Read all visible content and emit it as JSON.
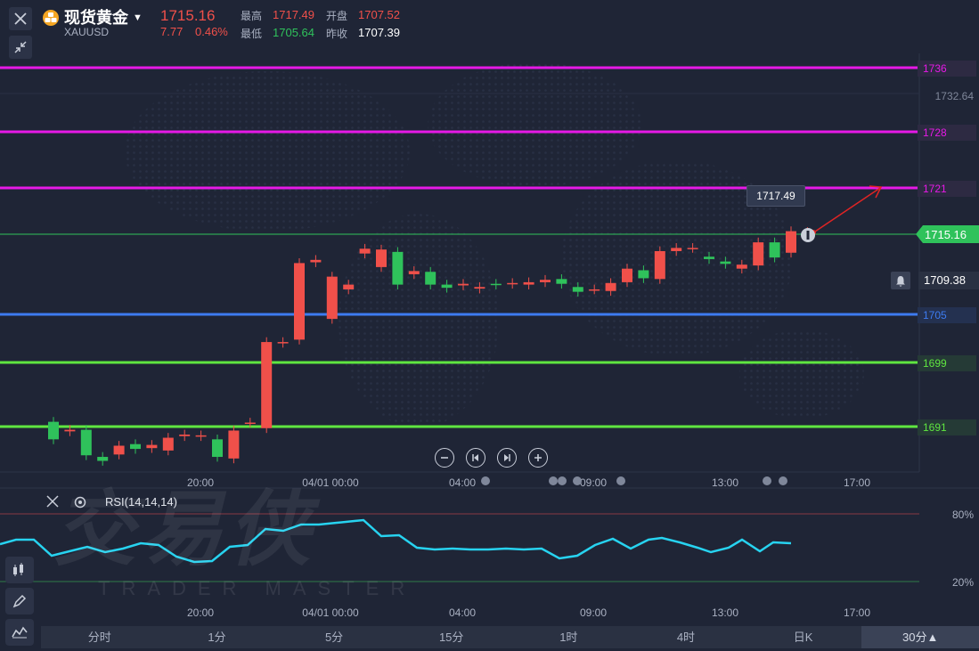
{
  "header": {
    "title": "现货黄金",
    "symbol": "XAUUSD",
    "price": "1715.16",
    "change": "7.77",
    "change_pct": "0.46%",
    "high_label": "最高",
    "high": "1717.49",
    "open_label": "开盘",
    "open": "1707.52",
    "low_label": "最低",
    "low": "1705.64",
    "prev_label": "昨收",
    "prev": "1707.39"
  },
  "price_axis": {
    "level_1736": "1736",
    "level_1732": "1732.64",
    "level_1728": "1728",
    "level_1721": "1721",
    "current": "1715.16",
    "alert": "1709.38",
    "level_1705": "1705",
    "level_1699": "1699",
    "level_1691": "1691",
    "high_marker": "1717.49"
  },
  "colors": {
    "magenta": "#e619e6",
    "blue": "#3d7bf0",
    "green_line": "#5fe640",
    "up": "#f0504a",
    "down": "#2fc25b",
    "rsi": "#27d3f0"
  },
  "time_axis": [
    "20:00",
    "04/01 00:00",
    "04:00",
    "09:00",
    "13:00",
    "17:00"
  ],
  "rsi": {
    "label": "RSI(14,14,14)",
    "level_high": "80%",
    "level_low": "20%"
  },
  "timeframes": [
    "分时",
    "1分",
    "5分",
    "15分",
    "1时",
    "4时",
    "日K",
    "30分▲"
  ],
  "watermark": {
    "cn": "交易侠",
    "en": "TRADER MASTER"
  },
  "chart_data": {
    "type": "candlestick",
    "horizontal_levels": [
      1736,
      1728,
      1721,
      1705,
      1699,
      1691
    ],
    "current_price": 1715.16,
    "candles": [
      {
        "o": 1691.6,
        "c": 1689.4
      },
      {
        "o": 1690.4,
        "c": 1690.6
      },
      {
        "o": 1690.6,
        "c": 1687.4
      },
      {
        "o": 1687.2,
        "c": 1686.7
      },
      {
        "o": 1687.5,
        "c": 1688.6
      },
      {
        "o": 1688.8,
        "c": 1688.2
      },
      {
        "o": 1688.3,
        "c": 1688.7
      },
      {
        "o": 1688.0,
        "c": 1689.6
      },
      {
        "o": 1689.8,
        "c": 1690.0
      },
      {
        "o": 1689.8,
        "c": 1689.9
      },
      {
        "o": 1689.4,
        "c": 1687.2
      },
      {
        "o": 1687.0,
        "c": 1690.5
      },
      {
        "o": 1691.5,
        "c": 1691.5
      },
      {
        "o": 1690.8,
        "c": 1701.6
      },
      {
        "o": 1701.5,
        "c": 1701.6
      },
      {
        "o": 1701.9,
        "c": 1711.5
      },
      {
        "o": 1711.6,
        "c": 1711.9
      },
      {
        "o": 1704.5,
        "c": 1709.8
      },
      {
        "o": 1708.2,
        "c": 1708.8
      },
      {
        "o": 1712.7,
        "c": 1713.3
      },
      {
        "o": 1711.0,
        "c": 1713.2
      },
      {
        "o": 1712.9,
        "c": 1708.8
      },
      {
        "o": 1710.1,
        "c": 1710.5
      },
      {
        "o": 1710.4,
        "c": 1708.8
      },
      {
        "o": 1708.8,
        "c": 1708.4
      },
      {
        "o": 1708.7,
        "c": 1708.9
      },
      {
        "o": 1708.3,
        "c": 1708.5
      },
      {
        "o": 1708.9,
        "c": 1708.8
      },
      {
        "o": 1708.9,
        "c": 1709.0
      },
      {
        "o": 1708.8,
        "c": 1709.1
      },
      {
        "o": 1709.1,
        "c": 1709.4
      },
      {
        "o": 1709.5,
        "c": 1708.9
      },
      {
        "o": 1708.5,
        "c": 1707.9
      },
      {
        "o": 1708.2,
        "c": 1708.2
      },
      {
        "o": 1708.0,
        "c": 1709.0
      },
      {
        "o": 1709.1,
        "c": 1710.8
      },
      {
        "o": 1710.6,
        "c": 1709.6
      },
      {
        "o": 1709.5,
        "c": 1713.0
      },
      {
        "o": 1713.0,
        "c": 1713.4
      },
      {
        "o": 1713.4,
        "c": 1713.4
      },
      {
        "o": 1712.3,
        "c": 1712.0
      },
      {
        "o": 1711.7,
        "c": 1711.4
      },
      {
        "o": 1710.8,
        "c": 1711.3
      },
      {
        "o": 1711.2,
        "c": 1714.1
      },
      {
        "o": 1714.1,
        "c": 1712.2
      },
      {
        "o": 1712.8,
        "c": 1715.5
      },
      {
        "o": 1715.3,
        "c": 1715.4
      }
    ]
  }
}
